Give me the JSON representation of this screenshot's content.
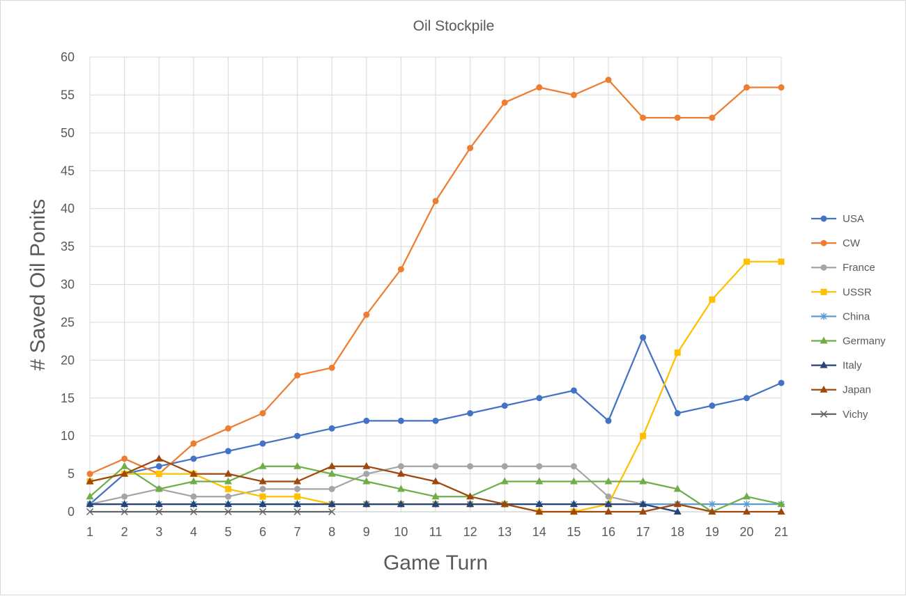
{
  "chart_data": {
    "type": "line",
    "title": "Oil Stockpile",
    "xlabel": "Game Turn",
    "ylabel": "# Saved Oil Ponits",
    "x": [
      1,
      2,
      3,
      4,
      5,
      6,
      7,
      8,
      9,
      10,
      11,
      12,
      13,
      14,
      15,
      16,
      17,
      18,
      19,
      20,
      21
    ],
    "ylim": [
      0,
      60
    ],
    "yticks": [
      0,
      5,
      10,
      15,
      20,
      25,
      30,
      35,
      40,
      45,
      50,
      55,
      60
    ],
    "grid": true,
    "legend_position": "right",
    "series": [
      {
        "name": "USA",
        "color": "#4472C4",
        "marker": "circle",
        "values": [
          1,
          5,
          6,
          7,
          8,
          9,
          10,
          11,
          12,
          12,
          12,
          13,
          14,
          15,
          16,
          12,
          23,
          13,
          14,
          15,
          17
        ]
      },
      {
        "name": "CW",
        "color": "#ED7D31",
        "marker": "circle",
        "values": [
          5,
          7,
          5,
          9,
          11,
          13,
          18,
          19,
          26,
          32,
          41,
          48,
          54,
          56,
          55,
          57,
          52,
          52,
          52,
          56,
          56
        ]
      },
      {
        "name": "France",
        "color": "#A5A5A5",
        "marker": "circle",
        "values": [
          1,
          2,
          3,
          2,
          2,
          3,
          3,
          3,
          5,
          6,
          6,
          6,
          6,
          6,
          6,
          2,
          1,
          1,
          null,
          null,
          null
        ]
      },
      {
        "name": "USSR",
        "color": "#FFC000",
        "marker": "square",
        "values": [
          4,
          5,
          5,
          5,
          3,
          2,
          2,
          1,
          1,
          1,
          1,
          1,
          1,
          0,
          0,
          1,
          10,
          21,
          28,
          33,
          33
        ]
      },
      {
        "name": "China",
        "color": "#5B9BD5",
        "marker": "star",
        "values": [
          1,
          1,
          1,
          1,
          1,
          1,
          1,
          1,
          1,
          1,
          1,
          1,
          1,
          1,
          1,
          1,
          1,
          1,
          1,
          1,
          1
        ]
      },
      {
        "name": "Germany",
        "color": "#70AD47",
        "marker": "triangle",
        "values": [
          2,
          6,
          3,
          4,
          4,
          6,
          6,
          5,
          4,
          3,
          2,
          2,
          4,
          4,
          4,
          4,
          4,
          3,
          0,
          2,
          1
        ]
      },
      {
        "name": "Italy",
        "color": "#264478",
        "marker": "triangle",
        "values": [
          1,
          1,
          1,
          1,
          1,
          1,
          1,
          1,
          1,
          1,
          1,
          1,
          1,
          1,
          1,
          1,
          1,
          0,
          null,
          null,
          null
        ]
      },
      {
        "name": "Japan",
        "color": "#9E480E",
        "marker": "triangle",
        "values": [
          4,
          5,
          7,
          5,
          5,
          4,
          4,
          6,
          6,
          5,
          4,
          2,
          1,
          0,
          0,
          0,
          0,
          1,
          0,
          0,
          0
        ]
      },
      {
        "name": "Vichy",
        "color": "#636363",
        "marker": "x",
        "values": [
          0,
          0,
          0,
          0,
          0,
          0,
          0,
          0,
          null,
          null,
          null,
          null,
          null,
          null,
          null,
          null,
          null,
          null,
          null,
          null,
          null
        ]
      }
    ]
  }
}
